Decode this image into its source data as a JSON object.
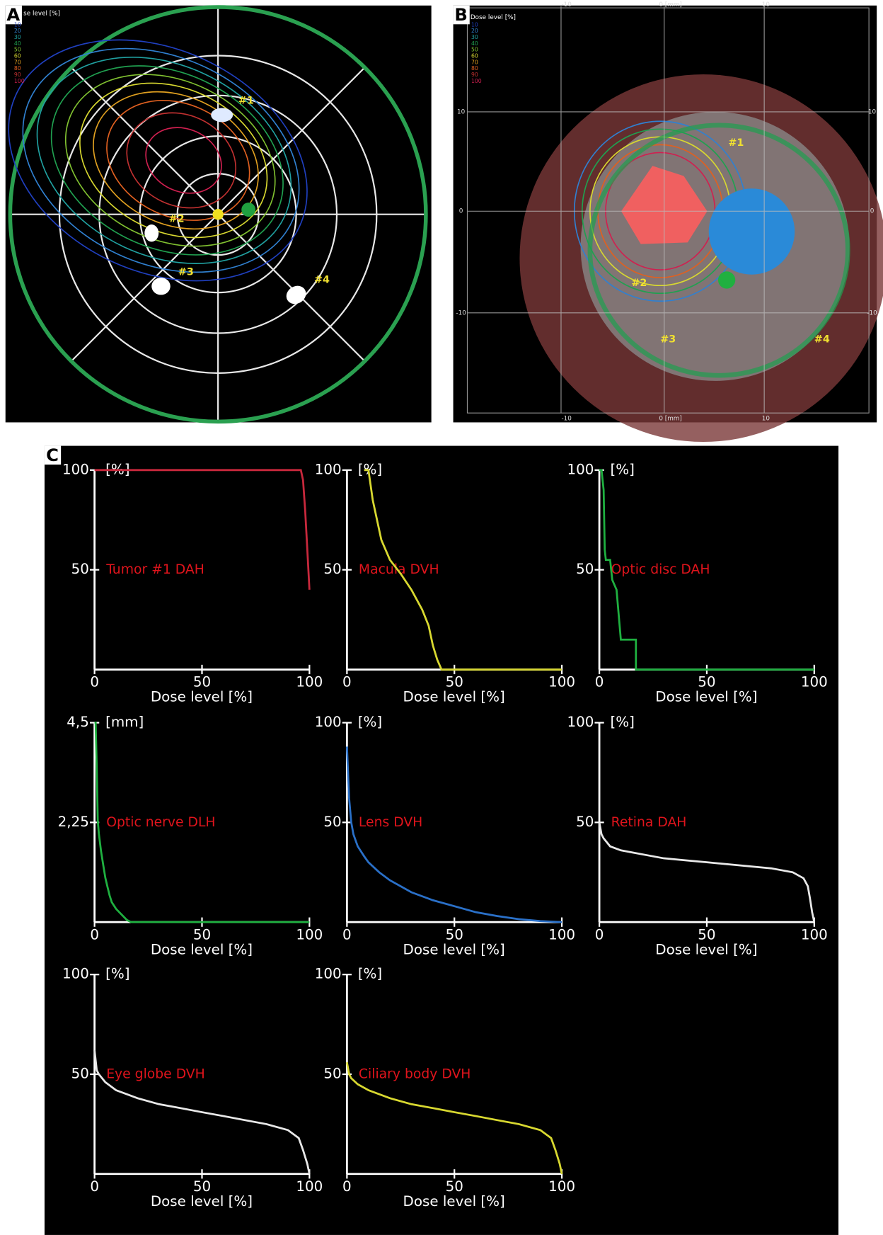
{
  "panel_labels": [
    "A",
    "B",
    "C"
  ],
  "panel_a": {
    "legend_title": "se level [%]",
    "legend": [
      "10",
      "20",
      "30",
      "40",
      "50",
      "60",
      "70",
      "80",
      "90",
      "100"
    ],
    "markers": [
      "#1",
      "#2",
      "#3",
      "#4"
    ]
  },
  "panel_b": {
    "legend_title": "Dose level [%]",
    "legend": [
      "10",
      "20",
      "30",
      "40",
      "50",
      "60",
      "70",
      "80",
      "90",
      "100"
    ],
    "markers": [
      "#1",
      "#2",
      "#3",
      "#4"
    ],
    "left_ticks": [
      "10",
      "0",
      "-10"
    ],
    "right_ticks": [
      "10",
      "0",
      "-10"
    ],
    "bottom_ticks": [
      "-10",
      "0 [mm]",
      "10"
    ],
    "top_ticks": [
      "-10",
      "0 [mm]",
      "10"
    ]
  },
  "chart_data": [
    {
      "type": "line",
      "title": "Tumor #1 DAH",
      "x_label": "Dose level [%]",
      "y_unit": "[%]",
      "xlim": [
        0,
        100
      ],
      "ylim": [
        0,
        100
      ],
      "xticks": [
        0,
        50,
        100
      ],
      "yticks": [
        50,
        100
      ],
      "x": [
        0,
        96,
        97,
        98,
        99,
        100
      ],
      "series": [
        {
          "color": "#c8283c",
          "values": [
            100,
            100,
            95,
            80,
            60,
            40
          ]
        }
      ]
    },
    {
      "type": "line",
      "title": "Macula DVH",
      "x_label": "Dose level [%]",
      "y_unit": "[%]",
      "xlim": [
        0,
        100
      ],
      "ylim": [
        0,
        100
      ],
      "xticks": [
        0,
        50,
        100
      ],
      "yticks": [
        50,
        100
      ],
      "x": [
        8,
        10,
        12,
        14,
        16,
        20,
        25,
        30,
        35,
        38,
        40,
        42,
        44,
        60,
        100
      ],
      "series": [
        {
          "color": "#d8d830",
          "values": [
            100,
            100,
            85,
            75,
            65,
            55,
            48,
            40,
            30,
            22,
            12,
            5,
            0,
            0,
            0
          ]
        }
      ]
    },
    {
      "type": "line",
      "title": "Optic disc DAH",
      "x_label": "Dose level [%]",
      "y_unit": "[%]",
      "xlim": [
        0,
        100
      ],
      "ylim": [
        0,
        100
      ],
      "xticks": [
        0,
        50,
        100
      ],
      "yticks": [
        50,
        100
      ],
      "x": [
        0,
        1,
        2,
        2.5,
        3,
        5,
        6,
        8,
        10,
        12,
        17,
        17,
        100
      ],
      "series": [
        {
          "color": "#1fb040",
          "values": [
            100,
            100,
            90,
            60,
            55,
            55,
            45,
            40,
            15,
            15,
            15,
            0,
            0
          ]
        }
      ]
    },
    {
      "type": "line",
      "title": "Optic nerve DLH",
      "x_label": "Dose level [%]",
      "y_unit": "[mm]",
      "xlim": [
        0,
        100
      ],
      "ylim": [
        0,
        4.5
      ],
      "xticks": [
        0,
        50,
        100
      ],
      "yticks": [
        {
          "value": 2.25,
          "label": "2,25"
        },
        {
          "value": 4.5,
          "label": "4,5"
        }
      ],
      "x": [
        0,
        0.5,
        1,
        1.5,
        2,
        3,
        4,
        5,
        6,
        7,
        8,
        10,
        12,
        15,
        17,
        100
      ],
      "series": [
        {
          "color": "#1fb040",
          "values": [
            4.5,
            4.5,
            3.5,
            2.3,
            2,
            1.6,
            1.3,
            1,
            0.8,
            0.6,
            0.45,
            0.3,
            0.2,
            0.05,
            0,
            0
          ]
        }
      ]
    },
    {
      "type": "line",
      "title": "Lens DVH",
      "x_label": "Dose level [%]",
      "y_unit": "[%]",
      "xlim": [
        0,
        100
      ],
      "ylim": [
        0,
        100
      ],
      "xticks": [
        0,
        50,
        100
      ],
      "yticks": [
        50,
        100
      ],
      "x": [
        0,
        1,
        2,
        3,
        5,
        8,
        10,
        15,
        20,
        30,
        40,
        50,
        60,
        70,
        80,
        90,
        100
      ],
      "series": [
        {
          "color": "#2a70c8",
          "values": [
            88,
            62,
            50,
            44,
            38,
            33,
            30,
            25,
            21,
            15,
            11,
            8,
            5,
            3,
            1.5,
            0.5,
            0
          ]
        }
      ]
    },
    {
      "type": "line",
      "title": "Retina DAH",
      "x_label": "Dose level [%]",
      "y_unit": "[%]",
      "xlim": [
        0,
        100
      ],
      "ylim": [
        0,
        100
      ],
      "xticks": [
        0,
        50,
        100
      ],
      "yticks": [
        50,
        100
      ],
      "x": [
        0,
        1,
        2,
        5,
        10,
        20,
        30,
        40,
        50,
        60,
        70,
        80,
        90,
        95,
        97,
        98,
        99,
        100
      ],
      "series": [
        {
          "color": "#e8e8e8",
          "values": [
            50,
            44,
            42,
            38,
            36,
            34,
            32,
            31,
            30,
            29,
            28,
            27,
            25,
            22,
            18,
            12,
            5,
            0
          ]
        }
      ]
    },
    {
      "type": "line",
      "title": "Eye globe DVH",
      "x_label": "Dose level [%]",
      "y_unit": "[%]",
      "xlim": [
        0,
        100
      ],
      "ylim": [
        0,
        100
      ],
      "xticks": [
        0,
        50,
        100
      ],
      "yticks": [
        50,
        100
      ],
      "x": [
        0,
        1,
        2,
        5,
        10,
        20,
        30,
        40,
        50,
        60,
        70,
        80,
        90,
        95,
        97,
        99,
        100
      ],
      "series": [
        {
          "color": "#e8e8e8",
          "values": [
            62,
            52,
            50,
            46,
            42,
            38,
            35,
            33,
            31,
            29,
            27,
            25,
            22,
            18,
            12,
            5,
            0
          ]
        }
      ]
    },
    {
      "type": "line",
      "title": "Ciliary body DVH",
      "x_label": "Dose level [%]",
      "y_unit": "[%]",
      "xlim": [
        0,
        100
      ],
      "ylim": [
        0,
        100
      ],
      "xticks": [
        0,
        50,
        100
      ],
      "yticks": [
        50,
        100
      ],
      "x": [
        0,
        1,
        2,
        5,
        10,
        20,
        30,
        40,
        50,
        60,
        70,
        80,
        90,
        95,
        97,
        99,
        100
      ],
      "series": [
        {
          "color": "#d8d830",
          "values": [
            56,
            50,
            48,
            45,
            42,
            38,
            35,
            33,
            31,
            29,
            27,
            25,
            22,
            18,
            12,
            5,
            0
          ]
        }
      ]
    }
  ]
}
